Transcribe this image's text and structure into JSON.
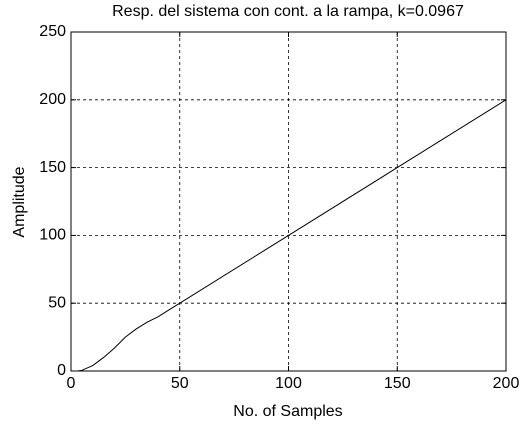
{
  "chart_data": {
    "type": "line",
    "title": "Resp. del sistema con cont. a la rampa, k=0.0967",
    "x_label": "No. of Samples",
    "y_label": "Amplitude",
    "x": [
      0,
      3,
      5,
      10,
      15,
      20,
      25,
      30,
      35,
      40,
      45,
      50,
      100,
      150,
      200
    ],
    "series": [
      {
        "color": "#000000",
        "values": [
          0,
          0,
          0.5,
          4,
          10,
          17,
          25,
          31,
          36,
          40,
          45,
          50,
          100,
          150,
          200
        ]
      }
    ],
    "xlim": [
      0,
      200
    ],
    "xticks": [
      0,
      50,
      100,
      150,
      200
    ],
    "ylim": [
      0,
      250
    ],
    "yticks": [
      0,
      50,
      100,
      150,
      200,
      250
    ],
    "grid": true
  }
}
